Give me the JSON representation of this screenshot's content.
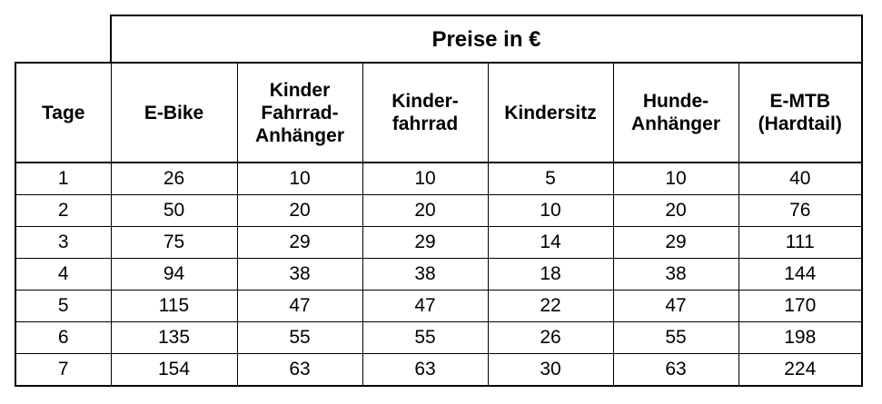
{
  "table": {
    "title": "Preise in €",
    "headers": [
      "Tage",
      "E-Bike",
      "Kinder\nFahrrad-\nAnhänger",
      "Kinder-\nfahrrad",
      "Kindersitz",
      "Hunde-\nAnhänger",
      "E-MTB\n(Hardtail)"
    ],
    "rows": [
      [
        1,
        26,
        10,
        10,
        5,
        10,
        40
      ],
      [
        2,
        50,
        20,
        20,
        10,
        20,
        76
      ],
      [
        3,
        75,
        29,
        29,
        14,
        29,
        111
      ],
      [
        4,
        94,
        38,
        38,
        18,
        38,
        144
      ],
      [
        5,
        115,
        47,
        47,
        22,
        47,
        170
      ],
      [
        6,
        135,
        55,
        55,
        26,
        55,
        198
      ],
      [
        7,
        154,
        63,
        63,
        30,
        63,
        224
      ]
    ]
  }
}
